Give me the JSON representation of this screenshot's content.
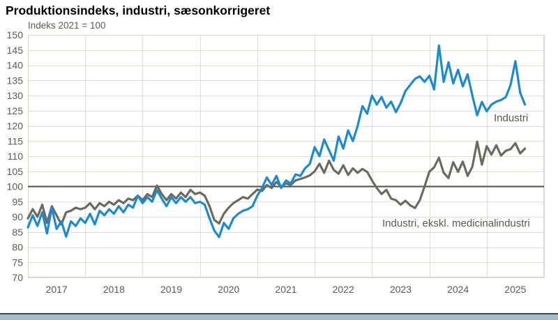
{
  "chart_data": {
    "type": "line",
    "title": "Produktionsindeks, industri, sæsonkorrigeret",
    "unit_label": "Indeks 2021 = 100",
    "xlabel": "",
    "ylabel": "Indeks 2021 = 100",
    "ylim": [
      70,
      150
    ],
    "y_ticks": [
      150,
      145,
      140,
      135,
      130,
      125,
      120,
      115,
      110,
      105,
      100,
      95,
      90,
      85,
      80,
      75,
      70
    ],
    "categories": [
      "2017",
      "2018",
      "2019",
      "2020",
      "2021",
      "2022",
      "2023",
      "2024",
      "2025"
    ],
    "points_per_year": 12,
    "reference_line": 100,
    "grid": true,
    "legend_position": "inline-annotations",
    "series": [
      {
        "name": "Industri",
        "color": "#1b8bd1",
        "values": [
          86.5,
          90.5,
          87,
          91.5,
          84.5,
          93,
          86,
          88.5,
          83.5,
          88.5,
          87,
          89.5,
          88,
          91,
          87.5,
          92,
          90.5,
          92.5,
          91,
          93.5,
          91.5,
          94,
          93,
          97,
          94.5,
          96.5,
          95,
          98.8,
          96,
          93.5,
          96.5,
          94.5,
          96.5,
          95,
          96.5,
          94.5,
          95,
          94,
          89.5,
          85.5,
          83.3,
          88,
          86,
          89.5,
          91,
          92,
          92.5,
          93.5,
          97,
          99.5,
          103,
          100.5,
          103.5,
          99.5,
          102,
          101,
          104,
          103.5,
          106,
          107.5,
          113,
          110,
          115.5,
          112,
          108.5,
          116.5,
          112.5,
          118.5,
          115,
          120,
          126.5,
          124,
          130,
          127,
          129.5,
          126,
          128,
          124.5,
          127.5,
          131.5,
          133.5,
          135.5,
          136.3,
          134.5,
          136.5,
          132,
          146.5,
          134.5,
          141,
          134,
          138.5,
          133,
          137,
          130,
          123.5,
          127.9,
          124.8,
          127,
          128,
          128.5,
          129.5,
          133.5,
          141.3,
          131,
          127
        ]
      },
      {
        "name": "Industri, ekskl. medicinalindustri",
        "color": "#6c6a5e",
        "values": [
          89.5,
          92.5,
          90,
          94,
          88,
          93.5,
          90.5,
          87.5,
          91.5,
          92,
          93,
          92.5,
          93,
          94.5,
          92.5,
          94.5,
          93.5,
          95,
          94,
          95.5,
          94.5,
          96,
          95.5,
          97,
          95.5,
          97.5,
          96.5,
          100.3,
          97.5,
          95.5,
          97.5,
          96,
          98,
          96.5,
          98.9,
          97.5,
          98,
          97,
          93.5,
          89,
          87.8,
          91,
          93,
          94.5,
          95.5,
          96.5,
          96,
          97.5,
          99,
          98.5,
          100.5,
          99.5,
          101.5,
          100,
          101,
          100.5,
          102,
          102.5,
          103,
          103.7,
          105,
          107.5,
          104.5,
          108.5,
          105.5,
          104.2,
          107,
          103.8,
          106,
          104.5,
          105.8,
          104.8,
          102,
          99.5,
          97.5,
          98.9,
          96,
          95.5,
          94,
          95.3,
          93.8,
          92.9,
          95.5,
          100,
          104.9,
          106.3,
          109.5,
          104.5,
          102.8,
          108,
          104.8,
          108.2,
          103.5,
          106.5,
          114.8,
          107.2,
          113.3,
          110.5,
          113.6,
          110.2,
          111.8,
          112.3,
          114.3,
          110.9,
          112.5
        ]
      }
    ]
  },
  "annotations": {
    "industri": "Industri",
    "ekskl": "Industri, ekskl. medicinalindustri"
  },
  "colors": {
    "grid": "#e0dfd5",
    "plot_border": "#d6d5ca",
    "axis_text": "#5b5950",
    "reference_line": "#55534b",
    "footer_line": "#2f4d5c",
    "footer_fill": "#a6bcc7"
  }
}
